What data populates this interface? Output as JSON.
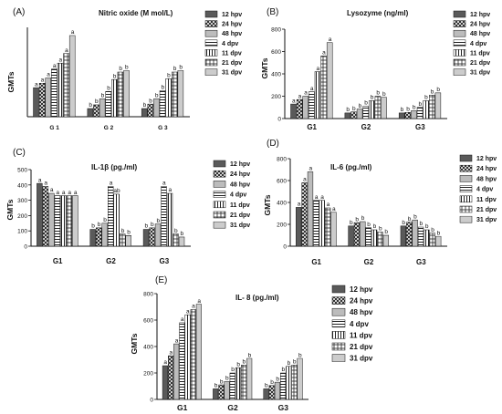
{
  "chart_data": [
    {
      "id": "A",
      "type": "bar",
      "panel_label": "(A)",
      "title": "Nitric oxide (M mol/L)",
      "ylabel": "GMTs",
      "xlabel": "",
      "categories": [
        "G 1",
        "G 2",
        "G 3"
      ],
      "ylim": [
        0,
        600
      ],
      "legend_position": "right",
      "grid": false,
      "series": [
        {
          "name": "12 hpv",
          "values": [
            195,
            55,
            55
          ],
          "letters": [
            "a",
            "b",
            "b"
          ]
        },
        {
          "name": "24 hpv",
          "values": [
            225,
            80,
            85
          ],
          "letters": [
            "a",
            "b",
            "b"
          ]
        },
        {
          "name": "48 hpv",
          "values": [
            260,
            120,
            120
          ],
          "letters": [
            "a",
            "b",
            "b"
          ]
        },
        {
          "name": "4  dpv",
          "values": [
            320,
            170,
            175
          ],
          "letters": [
            "a",
            "b",
            "b"
          ]
        },
        {
          "name": "11 dpv",
          "values": [
            360,
            250,
            255
          ],
          "letters": [
            "a",
            "b",
            "b"
          ]
        },
        {
          "name": "21 dpv",
          "values": [
            425,
            300,
            300
          ],
          "letters": [
            "a",
            "b",
            "b"
          ]
        },
        {
          "name": "31 dpv",
          "values": [
            545,
            310,
            310
          ],
          "letters": [
            "a",
            "b",
            "b"
          ]
        }
      ]
    },
    {
      "id": "B",
      "type": "bar",
      "panel_label": "(B)",
      "title": "Lysozyme (ng/ml)",
      "ylabel": "GMTs",
      "xlabel": "",
      "categories": [
        "G1",
        "G2",
        "G3"
      ],
      "ylim": [
        0,
        800
      ],
      "yticks": [
        0,
        200,
        400,
        600,
        800
      ],
      "legend_position": "right",
      "grid": false,
      "series": [
        {
          "name": "12 hpv",
          "values": [
            130,
            50,
            50
          ],
          "letters": [
            "a",
            "b",
            "b"
          ]
        },
        {
          "name": "24 hpv",
          "values": [
            170,
            60,
            55
          ],
          "letters": [
            "a",
            "b",
            "b"
          ]
        },
        {
          "name": "48 hpv",
          "values": [
            200,
            85,
            70
          ],
          "letters": [
            "a",
            "b",
            "b"
          ]
        },
        {
          "name": "4  dpv",
          "values": [
            240,
            110,
            100
          ],
          "letters": [
            "a",
            "b",
            "b"
          ]
        },
        {
          "name": "11 dpv",
          "values": [
            420,
            160,
            160
          ],
          "letters": [
            "a",
            "b",
            "b"
          ]
        },
        {
          "name": "21 dpv",
          "values": [
            560,
            200,
            210
          ],
          "letters": [
            "a",
            "b",
            "b"
          ]
        },
        {
          "name": "31 dpv",
          "values": [
            680,
            190,
            230
          ],
          "letters": [
            "a",
            "b",
            "b"
          ]
        }
      ]
    },
    {
      "id": "C",
      "type": "bar",
      "panel_label": "(C)",
      "title": "IL-1β (pg./ml)",
      "ylabel": "GMTs",
      "xlabel": "",
      "categories": [
        "G1",
        "G2",
        "G3"
      ],
      "ylim": [
        0,
        500
      ],
      "yticks": [
        0,
        100,
        200,
        300,
        400,
        500
      ],
      "legend_position": "right",
      "grid": false,
      "series": [
        {
          "name": "12 hpv",
          "values": [
            410,
            110,
            110
          ],
          "letters": [
            "a",
            "b",
            "b"
          ]
        },
        {
          "name": "24 hpv",
          "values": [
            390,
            120,
            120
          ],
          "letters": [
            "a",
            "b",
            "b"
          ]
        },
        {
          "name": "48 hpv",
          "values": [
            345,
            150,
            145
          ],
          "letters": [
            "a",
            "b",
            "b"
          ]
        },
        {
          "name": "4  dpv",
          "values": [
            330,
            390,
            390
          ],
          "letters": [
            "a",
            "a",
            "a"
          ]
        },
        {
          "name": "11 dpv",
          "values": [
            330,
            340,
            345
          ],
          "letters": [
            "a",
            "ab",
            "a"
          ]
        },
        {
          "name": "21 dpv",
          "values": [
            330,
            80,
            80
          ],
          "letters": [
            "a",
            "b",
            "b"
          ]
        },
        {
          "name": "31 dpv",
          "values": [
            330,
            70,
            60
          ],
          "letters": [
            "a",
            "b",
            "b"
          ]
        }
      ]
    },
    {
      "id": "D",
      "type": "bar",
      "panel_label": "(D)",
      "title": "IL-6 (pg./ml)",
      "ylabel": "GMTs",
      "xlabel": "",
      "categories": [
        "G1",
        "G2",
        "G3"
      ],
      "ylim": [
        0,
        800
      ],
      "yticks": [
        0,
        200,
        400,
        600,
        800
      ],
      "legend_position": "right",
      "grid": false,
      "series": [
        {
          "name": "12 hpv",
          "values": [
            355,
            185,
            185
          ],
          "letters": [
            "a",
            "b",
            "b"
          ]
        },
        {
          "name": "24 hpv",
          "values": [
            580,
            215,
            220
          ],
          "letters": [
            "a",
            "b",
            "b"
          ]
        },
        {
          "name": "48 hpv",
          "values": [
            680,
            225,
            240
          ],
          "letters": [
            "a",
            "b",
            "b"
          ]
        },
        {
          "name": "4  dpv",
          "values": [
            420,
            170,
            175
          ],
          "letters": [
            "a",
            "b",
            "b"
          ]
        },
        {
          "name": "11 dpv",
          "values": [
            420,
            150,
            150
          ],
          "letters": [
            "a",
            "b",
            "b"
          ]
        },
        {
          "name": "21 dpv",
          "values": [
            350,
            130,
            120
          ],
          "letters": [
            "a",
            "b",
            "b"
          ]
        },
        {
          "name": "31 dpv",
          "values": [
            310,
            100,
            90
          ],
          "letters": [
            "a",
            "b",
            "b"
          ]
        }
      ]
    },
    {
      "id": "E",
      "type": "bar",
      "panel_label": "(E)",
      "title": "IL- 8 (pg./ml)",
      "ylabel": "GMTs",
      "xlabel": "",
      "categories": [
        "G1",
        "G2",
        "G3"
      ],
      "ylim": [
        0,
        800
      ],
      "yticks": [
        0,
        200,
        400,
        600,
        800
      ],
      "legend_position": "right",
      "grid": false,
      "series": [
        {
          "name": "12 hpv",
          "values": [
            255,
            80,
            80
          ],
          "letters": [
            "a",
            "b",
            "b"
          ]
        },
        {
          "name": "24 hpv",
          "values": [
            330,
            110,
            105
          ],
          "letters": [
            "a",
            "b",
            "b"
          ]
        },
        {
          "name": "48 hpv",
          "values": [
            420,
            135,
            130
          ],
          "letters": [
            "a",
            "b",
            "b"
          ]
        },
        {
          "name": "4  dpv",
          "values": [
            580,
            200,
            200
          ],
          "letters": [
            "a",
            "b",
            "b"
          ]
        },
        {
          "name": "11 dpv",
          "values": [
            640,
            240,
            250
          ],
          "letters": [
            "a",
            "b",
            "b"
          ]
        },
        {
          "name": "21 dpv",
          "values": [
            680,
            260,
            260
          ],
          "letters": [
            "a",
            "b",
            "b"
          ]
        },
        {
          "name": "31 dpv",
          "values": [
            720,
            310,
            310
          ],
          "letters": [
            "a",
            "b",
            "b"
          ]
        }
      ]
    }
  ]
}
